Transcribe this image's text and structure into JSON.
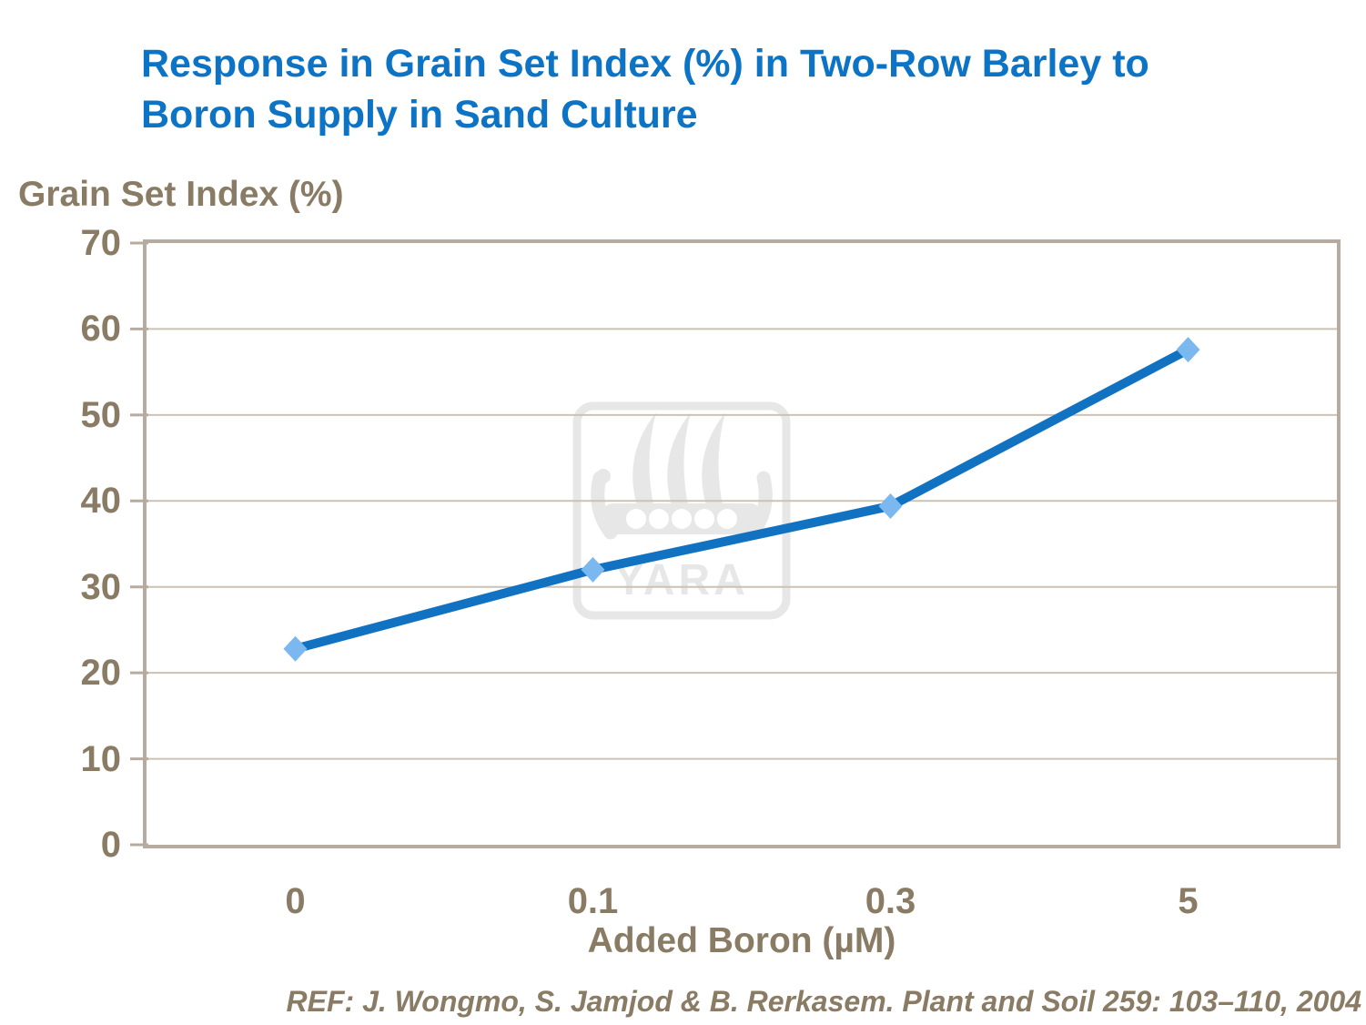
{
  "title": {
    "line1": "Response in Grain Set Index (%) in Two-Row Barley to",
    "line2": "Boron Supply in Sand Culture"
  },
  "y_axis_title": "Grain Set Index (%)",
  "x_axis_title": "Added Boron (µM)",
  "reference": "REF: J. Wongmo, S. Jamjod & B. Rerkasem. Plant and Soil 259: 103–110, 2004",
  "watermark": {
    "name": "yara-logo",
    "text": "YARA"
  },
  "colors": {
    "title": "#0d73c4",
    "text": "#8a7b65",
    "frame": "#b6ab9e",
    "gridline": "#cbc2b5",
    "line": "#1272c2",
    "marker": "#7cb8f0",
    "watermark": "#e7e7e7"
  },
  "chart_data": {
    "type": "line",
    "title": "Response in Grain Set Index (%) in Two-Row Barley to Boron Supply in Sand Culture",
    "categories": [
      "0",
      "0.1",
      "0.3",
      "5"
    ],
    "series": [
      {
        "name": "Grain Set Index (%)",
        "values": [
          22.8,
          32.0,
          39.4,
          57.6
        ]
      }
    ],
    "xlabel": "Added Boron (µM)",
    "ylabel": "Grain Set Index (%)",
    "ylim": [
      0,
      70
    ],
    "yticks": [
      0,
      10,
      20,
      30,
      40,
      50,
      60,
      70
    ],
    "grid": true,
    "legend": false,
    "marker": "diamond",
    "line_width": 10
  }
}
